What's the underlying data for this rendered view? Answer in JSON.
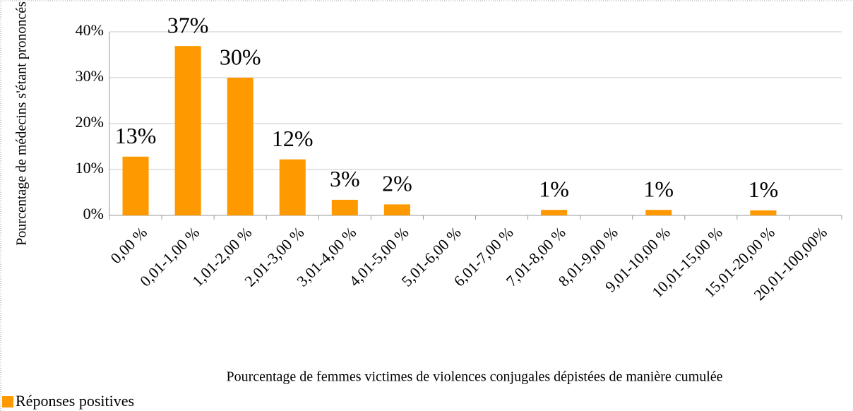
{
  "chart_data": {
    "type": "bar",
    "y_label": "Pourcentage de médecins s'étant prononcés",
    "x_label": "Pourcentage de femmes victimes de violences conjugales dépistées de manière cumulée",
    "categories": [
      "0,00 %",
      "0,01-1,00 %",
      "1,01-2,00 %",
      "2,01-3,00 %",
      "3,01-4,00 %",
      "4,01-5,00 %",
      "5,01-6,00 %",
      "6,01-7,00 %",
      "7,01-8,00 %",
      "8,01-9,00 %",
      "9,01-10,00 %",
      "10,01-15,00 %",
      "15,01-20,00 %",
      "20,01-100,00%"
    ],
    "series": [
      {
        "name": "Réponses positives",
        "color": "#ff9900",
        "values": [
          12.8,
          36.9,
          30,
          12.2,
          3.4,
          2.4,
          0,
          0,
          1.2,
          0,
          1.2,
          0,
          1.1,
          0
        ],
        "value_labels": [
          "13%",
          "37%",
          "30%",
          "12%",
          "3%",
          "2%",
          null,
          null,
          "1%",
          null,
          "1%",
          null,
          "1%",
          null
        ]
      }
    ],
    "ylim": [
      0,
      40
    ],
    "yticks": [
      {
        "value": 0,
        "label": "0%"
      },
      {
        "value": 10,
        "label": "10%"
      },
      {
        "value": 20,
        "label": "20%"
      },
      {
        "value": 30,
        "label": "30%"
      },
      {
        "value": 40,
        "label": "40%"
      }
    ],
    "grid": true,
    "legend": "bottom-left"
  }
}
